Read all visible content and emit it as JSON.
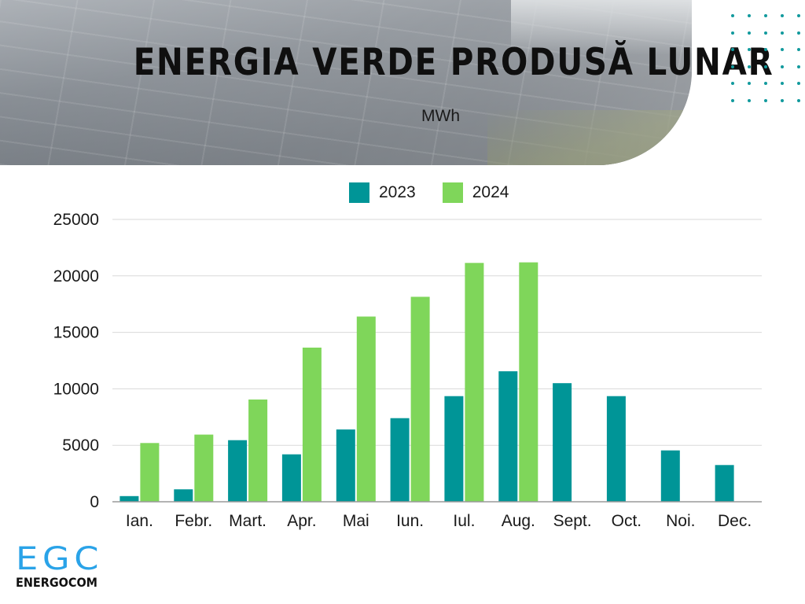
{
  "header": {
    "title": "ENERGIA VERDE PRODUSĂ LUNAR",
    "unit": "MWh"
  },
  "legend": [
    {
      "label": "2023",
      "color": "#009597"
    },
    {
      "label": "2024",
      "color": "#7fd65a"
    }
  ],
  "chart_data": {
    "type": "bar",
    "title": "ENERGIA VERDE PRODUSĂ LUNAR",
    "subtitle": "MWh",
    "categories": [
      "Ian.",
      "Febr.",
      "Mart.",
      "Apr.",
      "Mai",
      "Iun.",
      "Iul.",
      "Aug.",
      "Sept.",
      "Oct.",
      "Noi.",
      "Dec."
    ],
    "series": [
      {
        "name": "2023",
        "color": "#009597",
        "values": [
          500,
          1100,
          5450,
          4200,
          6400,
          7400,
          9350,
          11550,
          10500,
          9350,
          4550,
          3250
        ]
      },
      {
        "name": "2024",
        "color": "#7fd65a",
        "values": [
          5200,
          5950,
          9050,
          13650,
          16400,
          18150,
          21150,
          21200,
          null,
          null,
          null,
          null
        ]
      }
    ],
    "ylim": [
      0,
      25000
    ],
    "yticks": [
      0,
      5000,
      10000,
      15000,
      20000,
      25000
    ],
    "grid": true,
    "legend_position": "top"
  },
  "logo": {
    "mark": "EGC",
    "name": "ENERGOCOM",
    "color": "#2aa3e8"
  }
}
